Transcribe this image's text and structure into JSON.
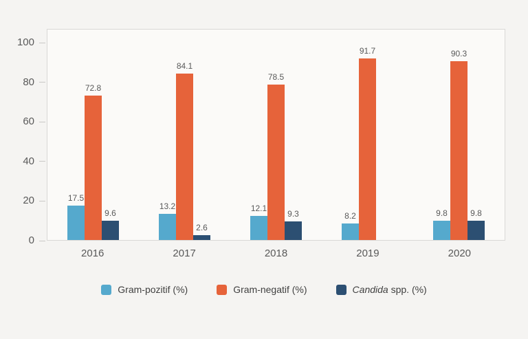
{
  "chart_data": {
    "type": "bar",
    "categories": [
      "2016",
      "2017",
      "2018",
      "2019",
      "2020"
    ],
    "series": [
      {
        "name": "Gram-pozitif (%)",
        "color": "#55a9cd",
        "values": [
          17.5,
          13.2,
          12.1,
          8.2,
          9.8
        ],
        "labels": [
          "17.5",
          "13.2",
          "12.1",
          "8.2",
          "9.8"
        ]
      },
      {
        "name": "Gram-negatif (%)",
        "color": "#e6633a",
        "values": [
          72.8,
          84.1,
          78.5,
          91.7,
          90.3
        ],
        "labels": [
          "72.8",
          "84.1",
          "78.5",
          "91.7",
          "90.3"
        ]
      },
      {
        "name": "Candida spp. (%)",
        "color": "#2c4f72",
        "values": [
          9.6,
          2.6,
          9.3,
          null,
          9.8
        ],
        "labels": [
          "9.6",
          "2.6",
          "9.3",
          null,
          "9.8"
        ]
      }
    ],
    "y_ticks": [
      0,
      20,
      40,
      60,
      80,
      100
    ],
    "ylim": [
      0,
      107
    ],
    "grid": false,
    "legend_position": "bottom",
    "title": "",
    "xlabel": "",
    "ylabel": ""
  },
  "legend": {
    "items": [
      {
        "color": "#55a9cd",
        "parts": [
          {
            "text": "Gram-pozitif (%)",
            "italic": false
          }
        ]
      },
      {
        "color": "#e6633a",
        "parts": [
          {
            "text": "Gram-negatif (%)",
            "italic": false
          }
        ]
      },
      {
        "color": "#2c4f72",
        "parts": [
          {
            "text": "Candida",
            "italic": true
          },
          {
            "text": " spp. (%)",
            "italic": false
          }
        ]
      }
    ]
  },
  "colors": {
    "background": "#f5f4f2",
    "plot_background": "#fbfaf8",
    "plot_border": "#d9d8d6",
    "tick": "#c9c8c6",
    "axis_text": "#595959",
    "value_label_text": "#595959",
    "legend_text": "#404040"
  }
}
